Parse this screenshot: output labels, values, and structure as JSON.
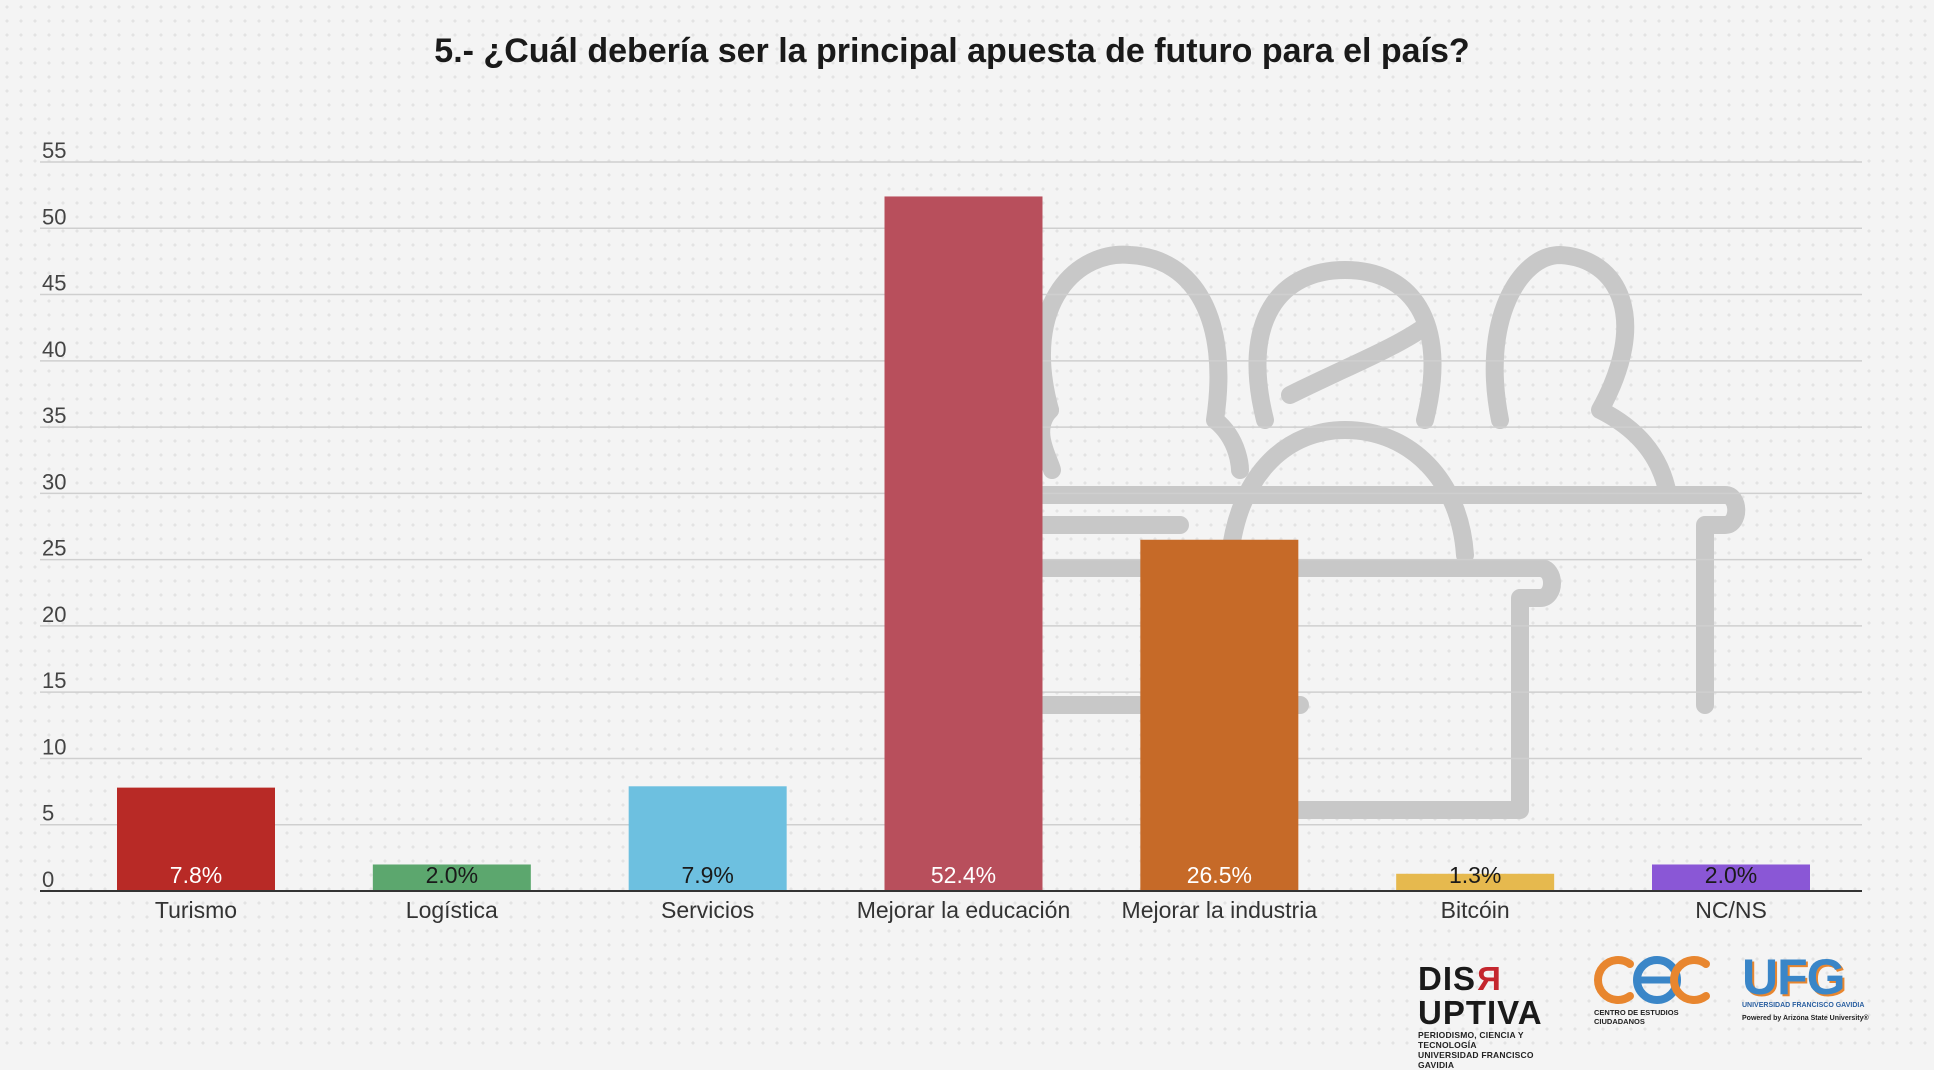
{
  "chart_data": {
    "type": "bar",
    "title": "5.- ¿Cuál debería ser la principal apuesta de futuro para el país?",
    "xlabel": "",
    "ylabel": "",
    "ylim": [
      0,
      55
    ],
    "yticks": [
      0,
      5,
      10,
      15,
      20,
      25,
      30,
      35,
      40,
      45,
      50,
      55
    ],
    "grid": true,
    "legend": "none",
    "categories": [
      "Turismo",
      "Logística",
      "Servicios",
      "Mejorar la educación",
      "Mejorar la industria",
      "Bitcóin",
      "NC/NS"
    ],
    "values": [
      7.8,
      2.0,
      7.9,
      52.4,
      26.5,
      1.3,
      2.0
    ],
    "data_labels": [
      "7.8%",
      "2.0%",
      "7.9%",
      "52.4%",
      "26.5%",
      "1.3%",
      "2.0%"
    ],
    "colors": [
      "#b82a26",
      "#5ca76e",
      "#6dc0e0",
      "#b84f5c",
      "#c66a28",
      "#e6b94e",
      "#8a57d6"
    ],
    "label_colors": [
      "#ffffff",
      "#1a1a1a",
      "#1a1a1a",
      "#ffffff",
      "#ffffff",
      "#1a1a1a",
      "#1a1a1a"
    ]
  },
  "logos": {
    "disruptiva": {
      "name_pre": "DIS",
      "name_r": "R",
      "name_post": "UPTIVA",
      "line1": "PERIODISMO, CIENCIA Y TECNOLOGÍA",
      "line2": "UNIVERSIDAD FRANCISCO GAVIDIA"
    },
    "cec": {
      "subtitle": "CENTRO DE ESTUDIOS CIUDADANOS"
    },
    "ufg": {
      "name": "UFG",
      "line1": "UNIVERSIDAD FRANCISCO GAVIDIA",
      "line2": "Powered by Arizona State University®"
    }
  }
}
